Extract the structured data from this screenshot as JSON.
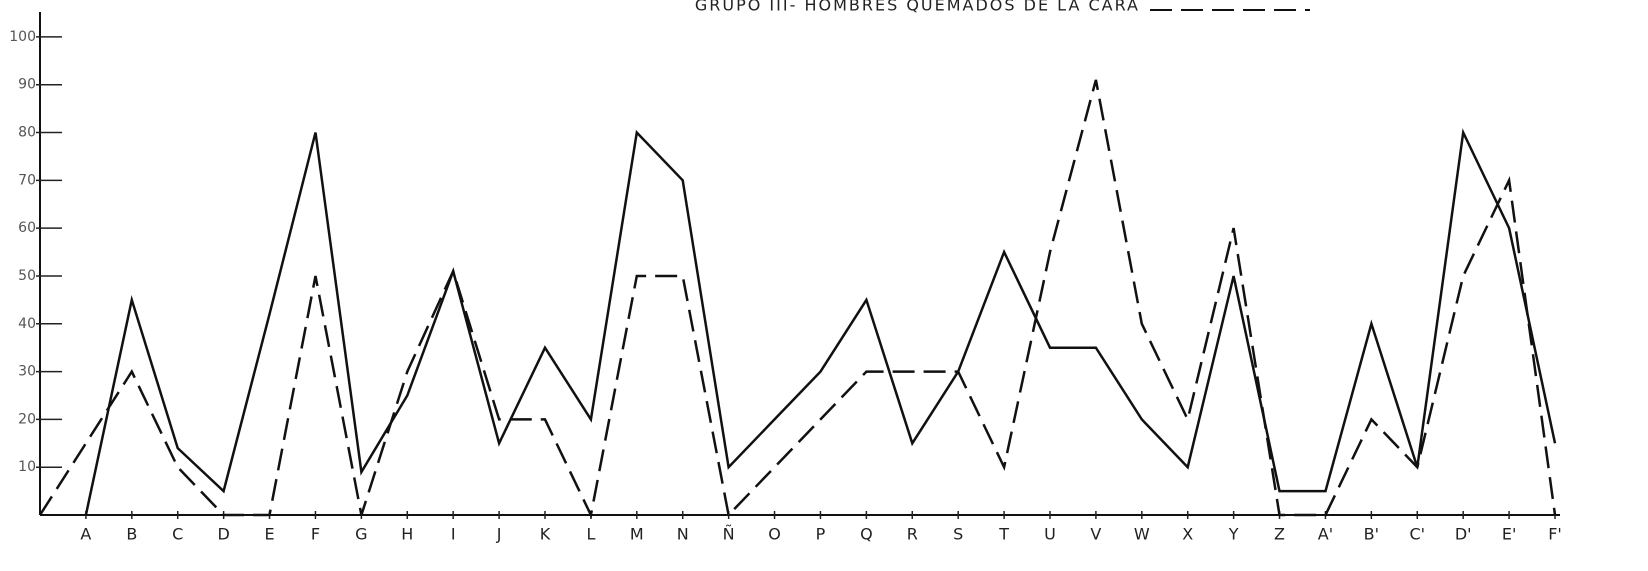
{
  "chart_data": {
    "type": "line",
    "categories": [
      null,
      "A",
      "B",
      "C",
      "D",
      "E",
      "F",
      "G",
      "H",
      "I",
      "J",
      "K",
      "L",
      "M",
      "N",
      "Ñ",
      "O",
      "P",
      "Q",
      "R",
      "S",
      "T",
      "U",
      "V",
      "W",
      "X",
      "Y",
      "Z",
      "A'",
      "B'",
      "C'",
      "D'",
      "E'",
      "F'"
    ],
    "series": [
      {
        "color": "#111111",
        "dash": "solid",
        "values": [
          null,
          0,
          45,
          14,
          5,
          42,
          80,
          9,
          25,
          51,
          15,
          35,
          20,
          80,
          70,
          10,
          20,
          30,
          45,
          15,
          30,
          55,
          35,
          35,
          20,
          10,
          50,
          5,
          5,
          40,
          10,
          80,
          60,
          15
        ]
      },
      {
        "name": "GRUPO III- HOMBRES QUEMADOS DE LA CARA",
        "color": "#111111",
        "dash": "dashed",
        "values": [
          0,
          15,
          30,
          10,
          0,
          0,
          50,
          0,
          30,
          51,
          20,
          20,
          0,
          50,
          50,
          0,
          10,
          20,
          30,
          30,
          30,
          10,
          55,
          91,
          40,
          20,
          60,
          0,
          0,
          20,
          10,
          50,
          70,
          0
        ]
      }
    ],
    "ylim": [
      0,
      105
    ],
    "yticks": [
      10,
      20,
      30,
      40,
      50,
      60,
      70,
      80,
      90,
      100
    ]
  }
}
